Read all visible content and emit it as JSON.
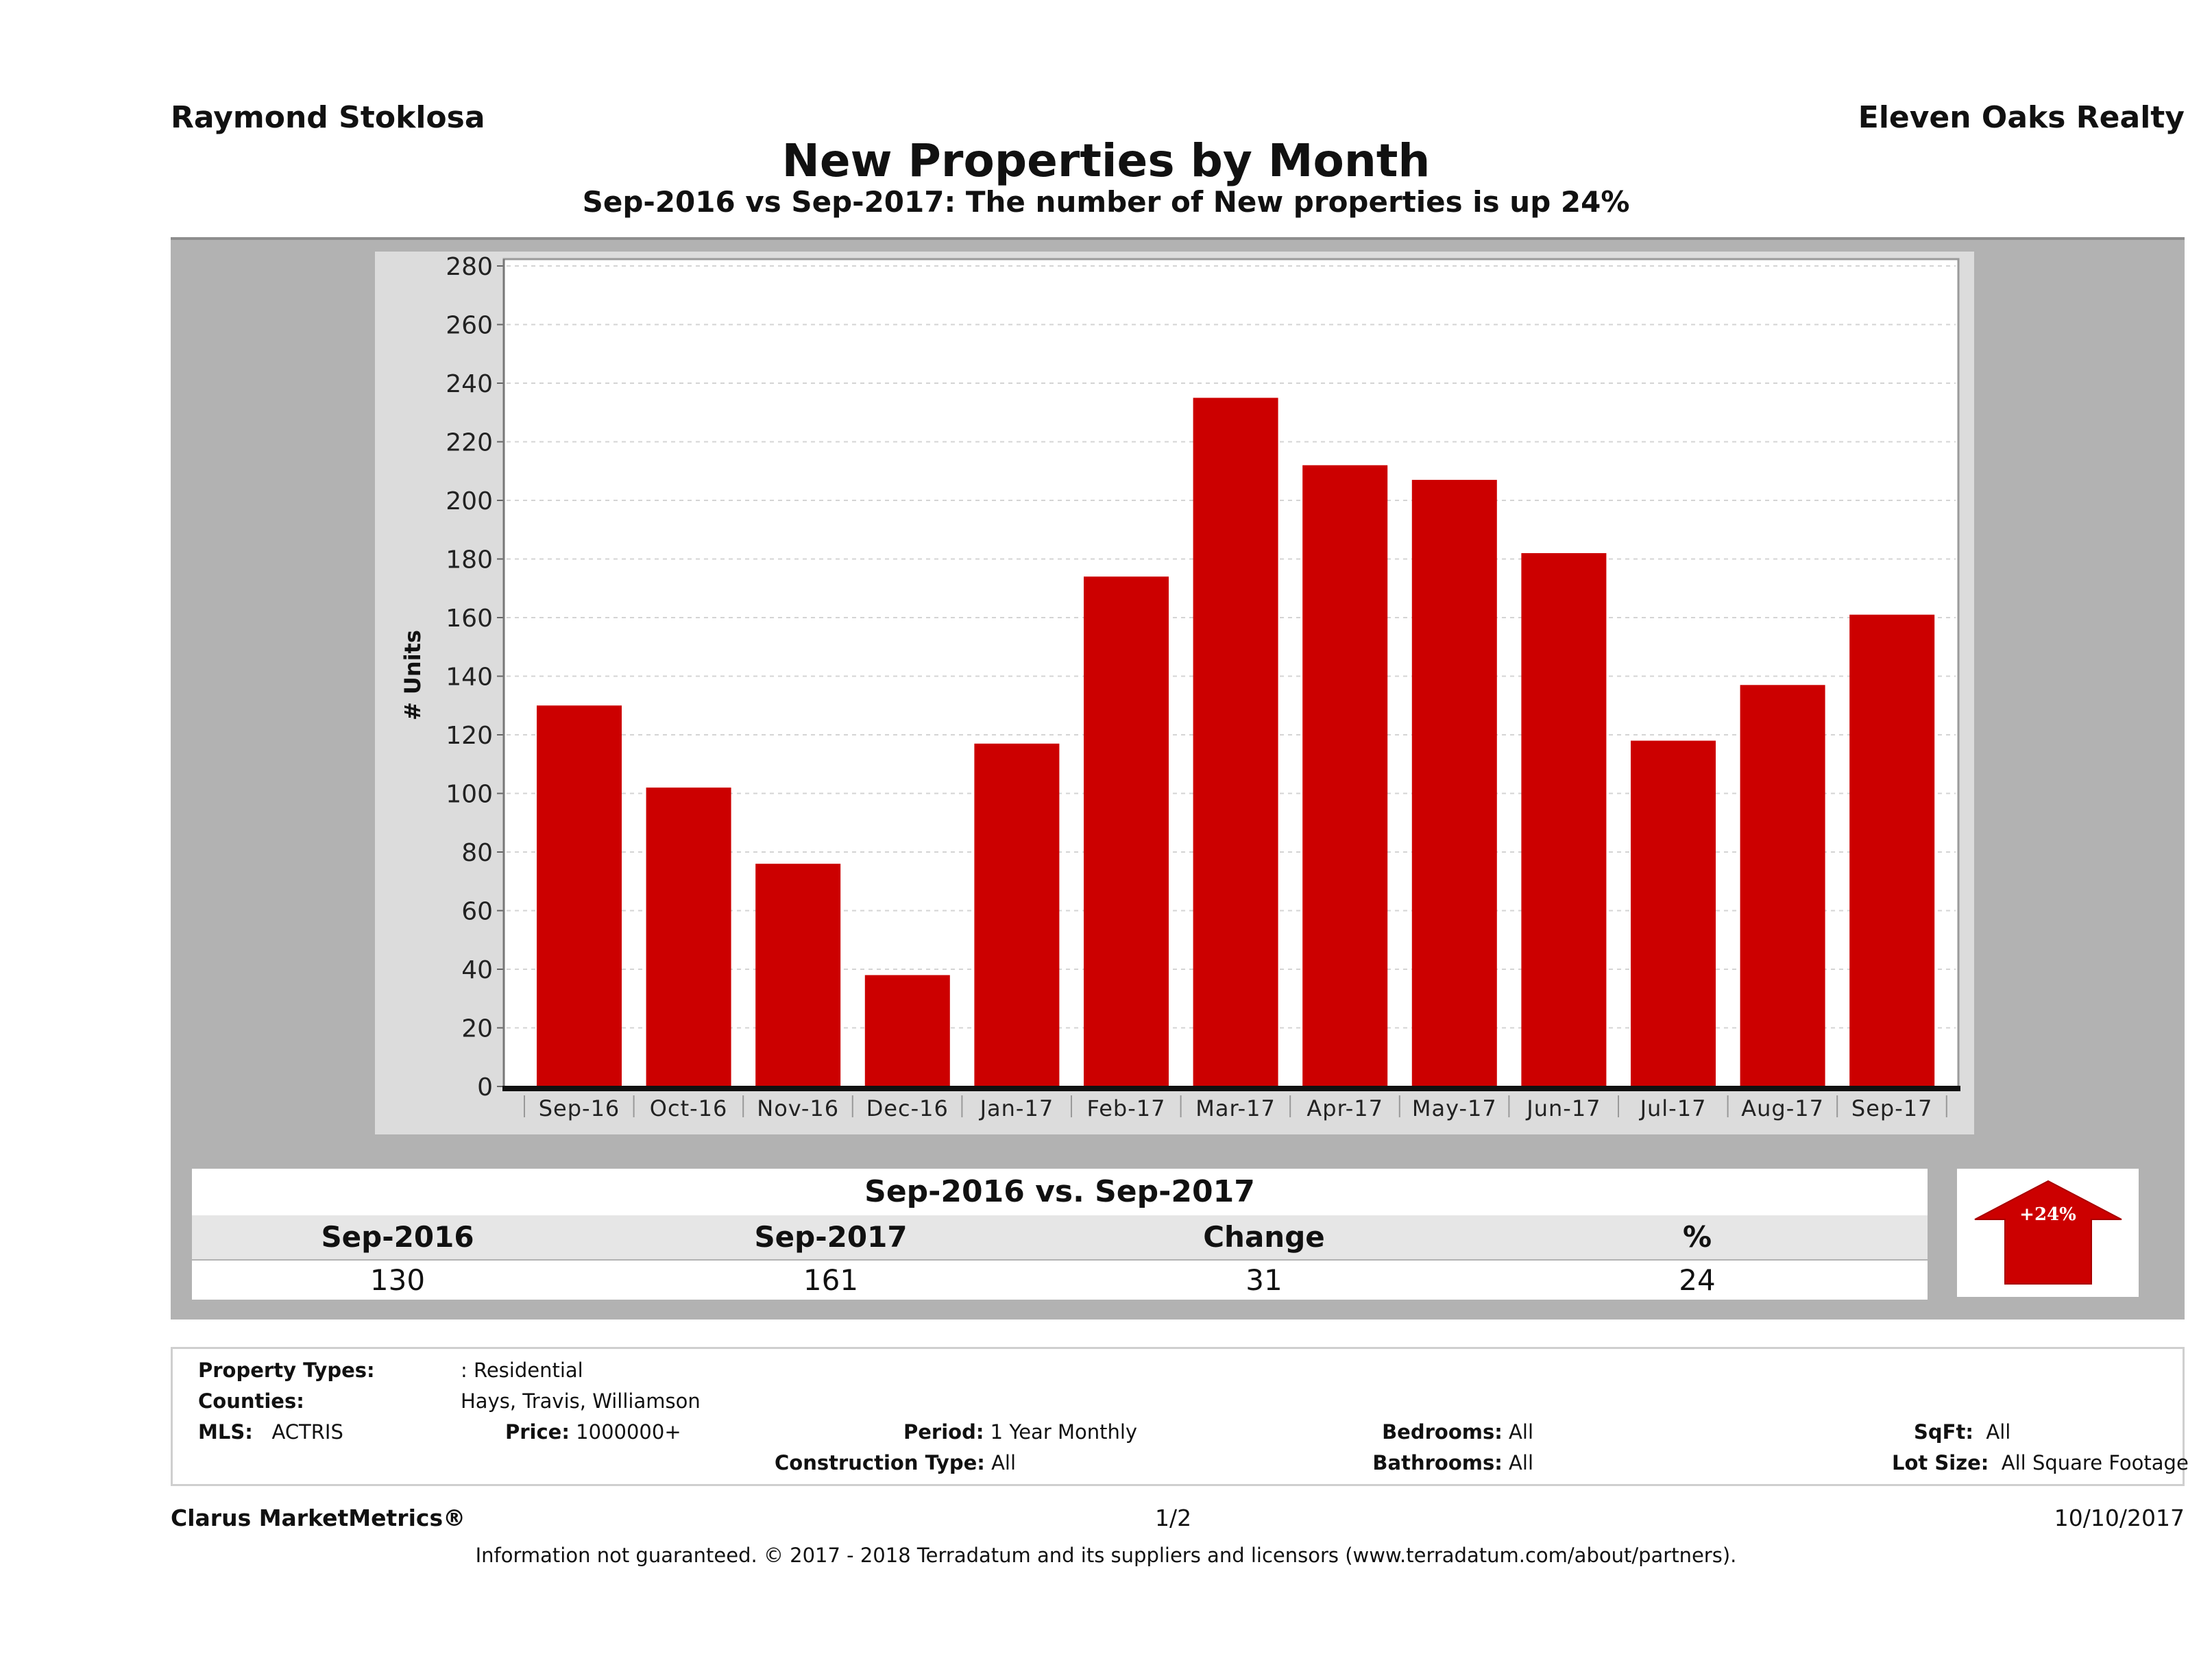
{
  "header": {
    "agent_name": "Raymond Stoklosa",
    "brokerage": "Eleven Oaks Realty",
    "title": "New Properties by Month",
    "subtitle": "Sep-2016 vs Sep-2017: The number of New  properties is up 24%"
  },
  "chart_data": {
    "type": "bar",
    "title": "New Properties by Month",
    "xlabel": "",
    "ylabel": "# Units",
    "categories": [
      "Sep-16",
      "Oct-16",
      "Nov-16",
      "Dec-16",
      "Jan-17",
      "Feb-17",
      "Mar-17",
      "Apr-17",
      "May-17",
      "Jun-17",
      "Jul-17",
      "Aug-17",
      "Sep-17"
    ],
    "series": [
      {
        "name": "New Properties",
        "color": "#cc0000",
        "values": [
          130,
          102,
          76,
          38,
          117,
          174,
          235,
          212,
          207,
          182,
          118,
          137,
          161
        ]
      }
    ],
    "ylim": [
      0,
      280
    ],
    "yticks": [
      0,
      20,
      40,
      60,
      80,
      100,
      120,
      140,
      160,
      180,
      200,
      220,
      240,
      260,
      280
    ],
    "grid": true,
    "legend": "none"
  },
  "summary": {
    "title": "Sep-2016 vs. Sep-2017",
    "headers": [
      "Sep-2016",
      "Sep-2017",
      "Change",
      "%"
    ],
    "values": [
      "130",
      "161",
      "31",
      "24"
    ],
    "badge": {
      "label": "+24%",
      "direction": "up",
      "color": "#cc0000"
    }
  },
  "filters": {
    "property_types": {
      "label": "Property Types:",
      "value": ": Residential"
    },
    "counties": {
      "label": "Counties:",
      "value": "Hays, Travis, Williamson"
    },
    "mls": {
      "label": "MLS:",
      "value": "ACTRIS"
    },
    "price": {
      "label": "Price:",
      "value": "1000000+"
    },
    "period": {
      "label": "Period:",
      "value": "1 Year Monthly"
    },
    "construction_type": {
      "label": "Construction Type:",
      "value": "All"
    },
    "bedrooms": {
      "label": "Bedrooms:",
      "value": "All"
    },
    "bathrooms": {
      "label": "Bathrooms:",
      "value": "All"
    },
    "sqft": {
      "label": "SqFt:",
      "value": "All"
    },
    "lot_size": {
      "label": "Lot Size:",
      "value": "All Square Footage"
    }
  },
  "footer": {
    "brand": "Clarus MarketMetrics®",
    "page": "1/2",
    "date": "10/10/2017",
    "disclaimer": "Information not guaranteed. © 2017 - 2018 Terradatum and its suppliers and licensors (www.terradatum.com/about/partners)."
  }
}
